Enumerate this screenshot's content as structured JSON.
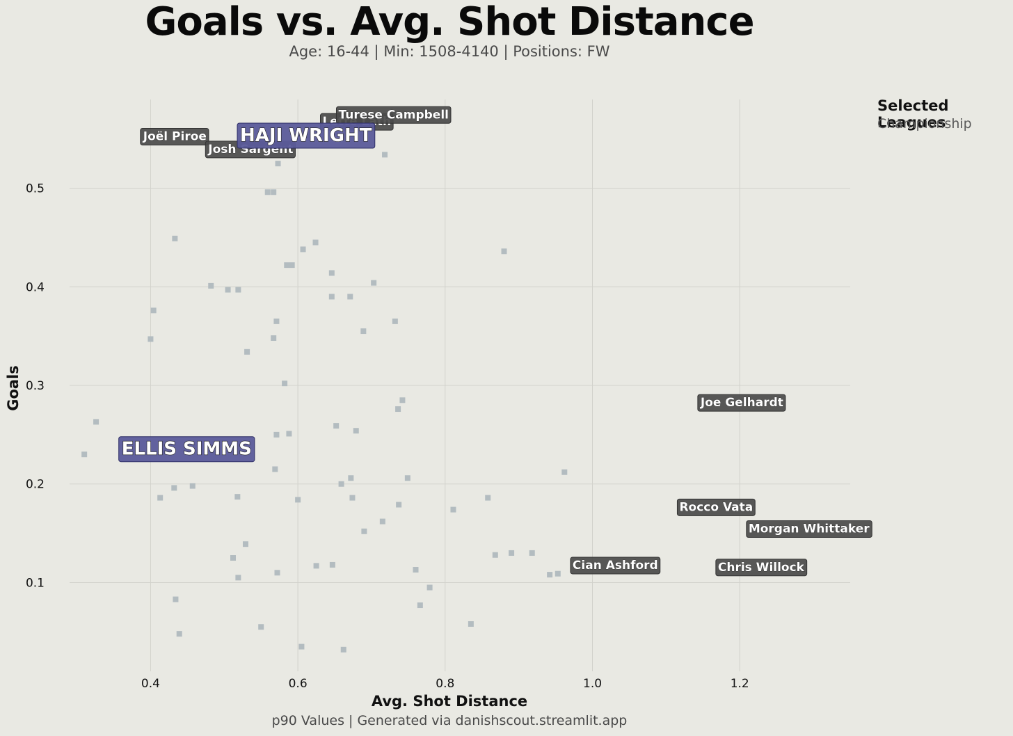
{
  "header": {
    "title": "Goals vs. Avg. Shot Distance",
    "subtitle": "Age: 16-44 | Min: 1508-4140 | Positions: FW"
  },
  "legend": {
    "title": "Selected Leagues",
    "item": "Championship"
  },
  "footer": "p90 Values | Generated via danishscout.streamlit.app",
  "colors": {
    "background": "#e9e9e3",
    "point": "#b3bcc0",
    "label_box": "#4a4a4a",
    "highlight_box": "#5b5b9a"
  },
  "chart_data": {
    "type": "scatter",
    "title": "Goals vs. Avg. Shot Distance",
    "xlabel": "Avg. Shot Distance",
    "ylabel": "Goals",
    "xlim": [
      0.29,
      1.35
    ],
    "ylim": [
      0.01,
      0.59
    ],
    "xticks": [
      0.4,
      0.6,
      0.8,
      1.0,
      1.2
    ],
    "yticks": [
      0.1,
      0.2,
      0.3,
      0.4,
      0.5
    ],
    "grid": true,
    "points": [
      [
        0.31,
        0.23
      ],
      [
        0.326,
        0.263
      ],
      [
        0.4,
        0.347
      ],
      [
        0.404,
        0.376
      ],
      [
        0.413,
        0.186
      ],
      [
        0.433,
        0.449
      ],
      [
        0.432,
        0.196
      ],
      [
        0.434,
        0.083
      ],
      [
        0.439,
        0.048
      ],
      [
        0.457,
        0.198
      ],
      [
        0.482,
        0.401
      ],
      [
        0.505,
        0.397
      ],
      [
        0.519,
        0.397
      ],
      [
        0.531,
        0.334
      ],
      [
        0.529,
        0.139
      ],
      [
        0.512,
        0.125
      ],
      [
        0.519,
        0.105
      ],
      [
        0.518,
        0.187
      ],
      [
        0.55,
        0.055
      ],
      [
        0.559,
        0.496
      ],
      [
        0.567,
        0.496
      ],
      [
        0.573,
        0.525
      ],
      [
        0.567,
        0.348
      ],
      [
        0.571,
        0.365
      ],
      [
        0.569,
        0.215
      ],
      [
        0.571,
        0.25
      ],
      [
        0.572,
        0.11
      ],
      [
        0.582,
        0.302
      ],
      [
        0.585,
        0.422
      ],
      [
        0.592,
        0.422
      ],
      [
        0.588,
        0.251
      ],
      [
        0.6,
        0.184
      ],
      [
        0.605,
        0.035
      ],
      [
        0.607,
        0.438
      ],
      [
        0.624,
        0.445
      ],
      [
        0.625,
        0.117
      ],
      [
        0.646,
        0.414
      ],
      [
        0.646,
        0.39
      ],
      [
        0.647,
        0.118
      ],
      [
        0.652,
        0.259
      ],
      [
        0.659,
        0.2
      ],
      [
        0.662,
        0.032
      ],
      [
        0.671,
        0.39
      ],
      [
        0.672,
        0.206
      ],
      [
        0.674,
        0.186
      ],
      [
        0.679,
        0.254
      ],
      [
        0.689,
        0.355
      ],
      [
        0.69,
        0.152
      ],
      [
        0.703,
        0.404
      ],
      [
        0.715,
        0.162
      ],
      [
        0.718,
        0.534
      ],
      [
        0.732,
        0.365
      ],
      [
        0.736,
        0.276
      ],
      [
        0.737,
        0.179
      ],
      [
        0.742,
        0.285
      ],
      [
        0.749,
        0.206
      ],
      [
        0.76,
        0.113
      ],
      [
        0.766,
        0.077
      ],
      [
        0.779,
        0.095
      ],
      [
        0.811,
        0.174
      ],
      [
        0.835,
        0.058
      ],
      [
        0.858,
        0.186
      ],
      [
        0.868,
        0.128
      ],
      [
        0.88,
        0.436
      ],
      [
        0.89,
        0.13
      ],
      [
        0.918,
        0.13
      ],
      [
        0.942,
        0.108
      ],
      [
        0.953,
        0.109
      ],
      [
        0.962,
        0.212
      ],
      [
        0.536,
        0.54
      ],
      [
        0.433,
        0.553
      ],
      [
        0.611,
        0.554
      ],
      [
        0.68,
        0.568
      ],
      [
        0.73,
        0.575
      ],
      [
        1.203,
        0.283
      ],
      [
        1.168,
        0.177
      ],
      [
        1.294,
        0.155
      ],
      [
        1.229,
        0.116
      ],
      [
        1.031,
        0.118
      ],
      [
        0.449,
        0.236
      ]
    ],
    "labels": [
      {
        "name": "Joël Piroe",
        "x": 0.433,
        "y": 0.553,
        "style": "small"
      },
      {
        "name": "Josh Sargent",
        "x": 0.536,
        "y": 0.54,
        "style": "small"
      },
      {
        "name": "Lette Lath",
        "x": 0.68,
        "y": 0.568,
        "style": "small"
      },
      {
        "name": "Turese Campbell",
        "x": 0.73,
        "y": 0.575,
        "style": "small"
      },
      {
        "name": "HAJI WRIGHT",
        "x": 0.611,
        "y": 0.554,
        "style": "big"
      },
      {
        "name": "ELLIS SIMMS",
        "x": 0.449,
        "y": 0.236,
        "style": "big"
      },
      {
        "name": "Joe Gelhardt",
        "x": 1.203,
        "y": 0.283,
        "style": "small"
      },
      {
        "name": "Rocco Vata",
        "x": 1.168,
        "y": 0.177,
        "style": "small"
      },
      {
        "name": "Morgan Whittaker",
        "x": 1.294,
        "y": 0.155,
        "style": "small"
      },
      {
        "name": "Cian Ashford",
        "x": 1.031,
        "y": 0.118,
        "style": "small"
      },
      {
        "name": "Chris Willock",
        "x": 1.229,
        "y": 0.116,
        "style": "small"
      }
    ]
  }
}
